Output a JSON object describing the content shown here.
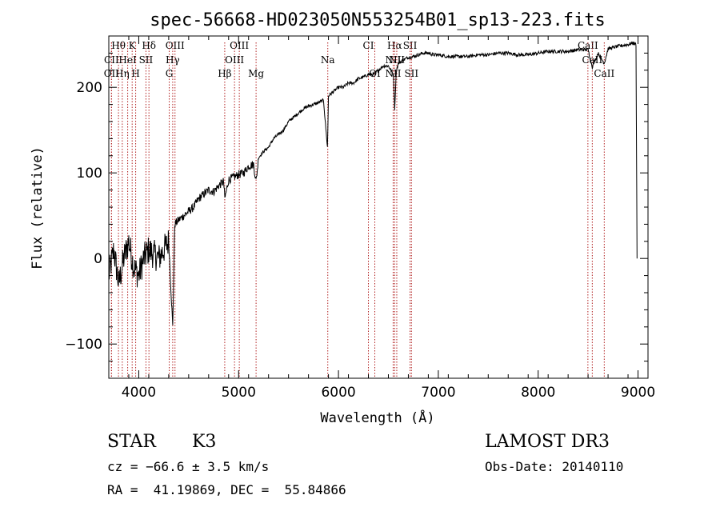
{
  "chart_data": {
    "type": "line",
    "title": "spec-56668-HD023050N553254B01_sp13-223.fits",
    "xlabel": "Wavelength (Å)",
    "ylabel": "Flux (relative)",
    "xlim": [
      3700,
      9100
    ],
    "ylim": [
      -140,
      260
    ],
    "x_ticks": [
      4000,
      5000,
      6000,
      7000,
      8000,
      9000
    ],
    "x_tick_labels": [
      "4000",
      "5000",
      "6000",
      "7000",
      "8000",
      "9000"
    ],
    "y_ticks": [
      -100,
      0,
      100,
      200
    ],
    "y_tick_labels": [
      "−100",
      "0",
      "100",
      "200"
    ],
    "series": [
      {
        "name": "spectrum",
        "x": [
          3700,
          3750,
          3800,
          3850,
          3900,
          3950,
          4000,
          4050,
          4100,
          4150,
          4200,
          4250,
          4300,
          4340,
          4360,
          4400,
          4450,
          4500,
          4550,
          4600,
          4650,
          4700,
          4750,
          4800,
          4850,
          4862,
          4900,
          4950,
          5000,
          5050,
          5100,
          5150,
          5175,
          5200,
          5250,
          5300,
          5350,
          5400,
          5450,
          5500,
          5550,
          5600,
          5650,
          5700,
          5750,
          5800,
          5850,
          5890,
          5900,
          5950,
          6000,
          6050,
          6100,
          6150,
          6200,
          6250,
          6300,
          6350,
          6400,
          6450,
          6500,
          6550,
          6563,
          6580,
          6600,
          6650,
          6700,
          6750,
          6800,
          6850,
          6900,
          6950,
          7000,
          7100,
          7200,
          7300,
          7400,
          7500,
          7600,
          7700,
          7800,
          7900,
          8000,
          8100,
          8200,
          8300,
          8400,
          8500,
          8542,
          8600,
          8662,
          8700,
          8800,
          8900,
          8950,
          8980,
          8990
        ],
        "values": [
          -20,
          10,
          -30,
          0,
          20,
          -10,
          -20,
          0,
          10,
          5,
          0,
          10,
          20,
          -80,
          40,
          45,
          50,
          55,
          60,
          70,
          75,
          80,
          78,
          85,
          90,
          70,
          92,
          95,
          98,
          100,
          108,
          110,
          90,
          118,
          125,
          130,
          140,
          145,
          150,
          160,
          165,
          170,
          175,
          178,
          180,
          182,
          185,
          130,
          190,
          195,
          200,
          200,
          205,
          205,
          210,
          212,
          215,
          215,
          220,
          225,
          225,
          215,
          175,
          220,
          228,
          232,
          235,
          236,
          238,
          240,
          240,
          238,
          238,
          236,
          236,
          236,
          238,
          238,
          240,
          240,
          238,
          238,
          240,
          242,
          242,
          242,
          244,
          244,
          224,
          240,
          228,
          245,
          248,
          250,
          252,
          250,
          0
        ]
      }
    ],
    "spectral_lines": [
      {
        "label": "Hθ",
        "x": 3797,
        "row": 0
      },
      {
        "label": "K",
        "x": 3934,
        "row": 0
      },
      {
        "label": "Hδ",
        "x": 4102,
        "row": 0
      },
      {
        "label": "OIII",
        "x": 4363,
        "row": 0
      },
      {
        "label": "OIII",
        "x": 5007,
        "row": 0
      },
      {
        "label": "CI",
        "x": 6300,
        "row": 0
      },
      {
        "label": "Hα",
        "x": 6563,
        "row": 0
      },
      {
        "label": "SII",
        "x": 6717,
        "row": 0
      },
      {
        "label": "CaII",
        "x": 8498,
        "row": 0
      },
      {
        "label": "CII",
        "x": 3727,
        "row": 1
      },
      {
        "label": "HeI",
        "x": 3889,
        "row": 1
      },
      {
        "label": "SII",
        "x": 4072,
        "row": 1
      },
      {
        "label": "Hγ",
        "x": 4340,
        "row": 1
      },
      {
        "label": "OIII",
        "x": 4959,
        "row": 1
      },
      {
        "label": "Na",
        "x": 5893,
        "row": 1
      },
      {
        "label": "NII",
        "x": 6548,
        "row": 1
      },
      {
        "label": "NII",
        "x": 6584,
        "row": 1
      },
      {
        "label": "CaII",
        "x": 8542,
        "row": 1
      },
      {
        "label": "OII",
        "x": 3727,
        "row": 2
      },
      {
        "label": "Hη",
        "x": 3835,
        "row": 2
      },
      {
        "label": "H",
        "x": 3969,
        "row": 2
      },
      {
        "label": "G",
        "x": 4305,
        "row": 2
      },
      {
        "label": "Hβ",
        "x": 4861,
        "row": 2
      },
      {
        "label": "Mg",
        "x": 5175,
        "row": 2
      },
      {
        "label": "OI",
        "x": 6364,
        "row": 2
      },
      {
        "label": "NII",
        "x": 6548,
        "row": 2
      },
      {
        "label": "SII",
        "x": 6731,
        "row": 2
      },
      {
        "label": "CaII",
        "x": 8662,
        "row": 2
      }
    ]
  },
  "info": {
    "object_class": "STAR",
    "subclass": "K3",
    "survey": "LAMOST DR3",
    "cz": "cz = −66.6 ± 3.5 km/s",
    "obs_date": "Obs-Date: 20140110",
    "coords": "RA =  41.19869, DEC =  55.84866"
  }
}
